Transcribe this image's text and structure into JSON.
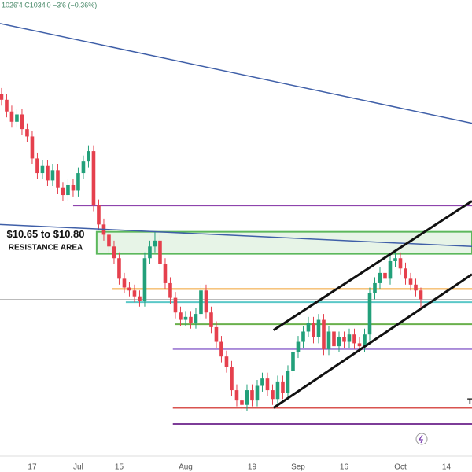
{
  "chart_data": {
    "type": "candlestick",
    "header": "1026'4 C1034'0 −3'6 (−0.36%)",
    "up_color": "#22a07a",
    "down_color": "#e5404d",
    "open": [
      11.74,
      11.7,
      11.62,
      11.55,
      11.6,
      11.5,
      11.45,
      11.3,
      11.2,
      11.25,
      11.15,
      11.22,
      11.1,
      11.05,
      11.12,
      11.08,
      11.2,
      11.28,
      11.35,
      10.98,
      10.85,
      10.78,
      10.7,
      10.62,
      10.48,
      10.42,
      10.4,
      10.36,
      10.33,
      10.62,
      10.7,
      10.74,
      10.58,
      10.45,
      10.35,
      10.25,
      10.2,
      10.22,
      10.18,
      10.24,
      10.4,
      10.25,
      10.15,
      10.05,
      9.95,
      9.88,
      9.72,
      9.65,
      9.62,
      9.72,
      9.65,
      9.75,
      9.8,
      9.72,
      9.66,
      9.78,
      9.7,
      9.85,
      9.98,
      10.05,
      10.12,
      10.18,
      10.08,
      10.2,
      10.0,
      10.12,
      10.02,
      10.08,
      10.05,
      10.1,
      10.04,
      10.02,
      10.1,
      10.38,
      10.45,
      10.52,
      10.48,
      10.6,
      10.62,
      10.55,
      10.48,
      10.44,
      10.4
    ],
    "high": [
      11.78,
      11.74,
      11.66,
      11.64,
      11.64,
      11.54,
      11.49,
      11.34,
      11.29,
      11.29,
      11.26,
      11.26,
      11.14,
      11.16,
      11.16,
      11.24,
      11.32,
      11.39,
      11.39,
      11.02,
      10.89,
      10.82,
      10.74,
      10.66,
      10.52,
      10.46,
      10.44,
      10.4,
      10.66,
      10.74,
      10.8,
      10.78,
      10.62,
      10.49,
      10.39,
      10.29,
      10.26,
      10.26,
      10.28,
      10.44,
      10.44,
      10.29,
      10.19,
      10.09,
      9.99,
      9.92,
      9.76,
      9.69,
      9.76,
      9.76,
      9.79,
      9.84,
      9.84,
      9.76,
      9.82,
      9.82,
      9.89,
      10.02,
      10.09,
      10.16,
      10.22,
      10.22,
      10.24,
      10.24,
      10.16,
      10.16,
      10.12,
      10.12,
      10.14,
      10.14,
      10.08,
      10.14,
      10.42,
      10.49,
      10.56,
      10.56,
      10.64,
      10.66,
      10.66,
      10.59,
      10.52,
      10.48,
      10.42
    ],
    "low": [
      11.66,
      11.58,
      11.51,
      11.51,
      11.46,
      11.41,
      11.26,
      11.16,
      11.16,
      11.11,
      11.11,
      11.06,
      11.01,
      11.01,
      11.04,
      11.04,
      11.16,
      11.24,
      10.94,
      10.81,
      10.74,
      10.66,
      10.58,
      10.44,
      10.38,
      10.36,
      10.32,
      10.29,
      10.29,
      10.58,
      10.66,
      10.54,
      10.41,
      10.31,
      10.21,
      10.16,
      10.16,
      10.14,
      10.14,
      10.2,
      10.21,
      10.11,
      10.01,
      9.91,
      9.84,
      9.68,
      9.61,
      9.58,
      9.58,
      9.61,
      9.61,
      9.71,
      9.68,
      9.62,
      9.62,
      9.66,
      9.66,
      9.81,
      9.94,
      10.01,
      10.08,
      10.04,
      10.04,
      9.96,
      9.96,
      9.98,
      9.98,
      10.01,
      10.01,
      10.0,
      9.98,
      9.98,
      10.06,
      10.34,
      10.41,
      10.44,
      10.44,
      10.56,
      10.51,
      10.44,
      10.4,
      10.36,
      10.27
    ],
    "close": [
      11.7,
      11.62,
      11.55,
      11.6,
      11.5,
      11.45,
      11.3,
      11.2,
      11.25,
      11.15,
      11.22,
      11.1,
      11.05,
      11.12,
      11.08,
      11.2,
      11.28,
      11.35,
      10.98,
      10.85,
      10.78,
      10.7,
      10.62,
      10.48,
      10.42,
      10.4,
      10.36,
      10.33,
      10.62,
      10.7,
      10.74,
      10.58,
      10.45,
      10.35,
      10.25,
      10.2,
      10.22,
      10.18,
      10.24,
      10.4,
      10.25,
      10.15,
      10.05,
      9.95,
      9.88,
      9.72,
      9.65,
      9.62,
      9.72,
      9.65,
      9.75,
      9.8,
      9.72,
      9.66,
      9.78,
      9.7,
      9.85,
      9.98,
      10.05,
      10.12,
      10.18,
      10.08,
      10.2,
      10.0,
      10.12,
      10.02,
      10.08,
      10.05,
      10.1,
      10.04,
      10.02,
      10.1,
      10.38,
      10.45,
      10.52,
      10.48,
      10.6,
      10.62,
      10.55,
      10.48,
      10.44,
      10.4,
      10.34
    ],
    "xlim": [
      -0.3,
      92
    ],
    "xticks": [
      {
        "value": 6,
        "label": "17"
      },
      {
        "value": 15,
        "label": "Jul"
      },
      {
        "value": 23,
        "label": "15"
      },
      {
        "value": 36,
        "label": "Aug"
      },
      {
        "value": 49,
        "label": "19"
      },
      {
        "value": 58,
        "label": "Sep"
      },
      {
        "value": 67,
        "label": "16"
      },
      {
        "value": 78,
        "label": "Oct"
      },
      {
        "value": 87,
        "label": "14"
      }
    ],
    "ylim": [
      9.27,
      12.38
    ],
    "zone": {
      "values": [
        10.65,
        10.8
      ],
      "from": 18.6,
      "color": "#5cb85c",
      "label": [
        "$10.65 to $10.80",
        "RESISTANCE AREA"
      ]
    },
    "levels": [
      {
        "value": 10.98,
        "from": 14,
        "color": "#8e44ad"
      },
      {
        "value": 10.41,
        "from": 21.7,
        "color": "#f0a030"
      },
      {
        "value": 10.32,
        "from": 24.3,
        "color": "#5bc8c8"
      },
      {
        "value": 10.17,
        "from": 33.9,
        "color": "#6ab04c"
      },
      {
        "value": 10.0,
        "from": 33.5,
        "color": "#a88ad8"
      },
      {
        "value": 9.6,
        "from": 33.5,
        "color": "#d9534f"
      },
      {
        "value": 9.49,
        "from": 33.5,
        "color": "#7d3c98"
      }
    ],
    "trendlines": [
      {
        "color": "#3f5fa8",
        "x": [
          -0.3,
          92
        ],
        "y": [
          12.22,
          11.54
        ]
      },
      {
        "color": "#3f5fa8",
        "x": [
          -0.3,
          92
        ],
        "y": [
          10.85,
          10.7
        ]
      },
      {
        "color": "#111111",
        "x": [
          53.2,
          92
        ],
        "y": [
          10.13,
          11.01
        ]
      },
      {
        "color": "#111111",
        "x": [
          53.2,
          92
        ],
        "y": [
          9.6,
          10.51
        ]
      }
    ],
    "annotations": [
      "T"
    ]
  }
}
